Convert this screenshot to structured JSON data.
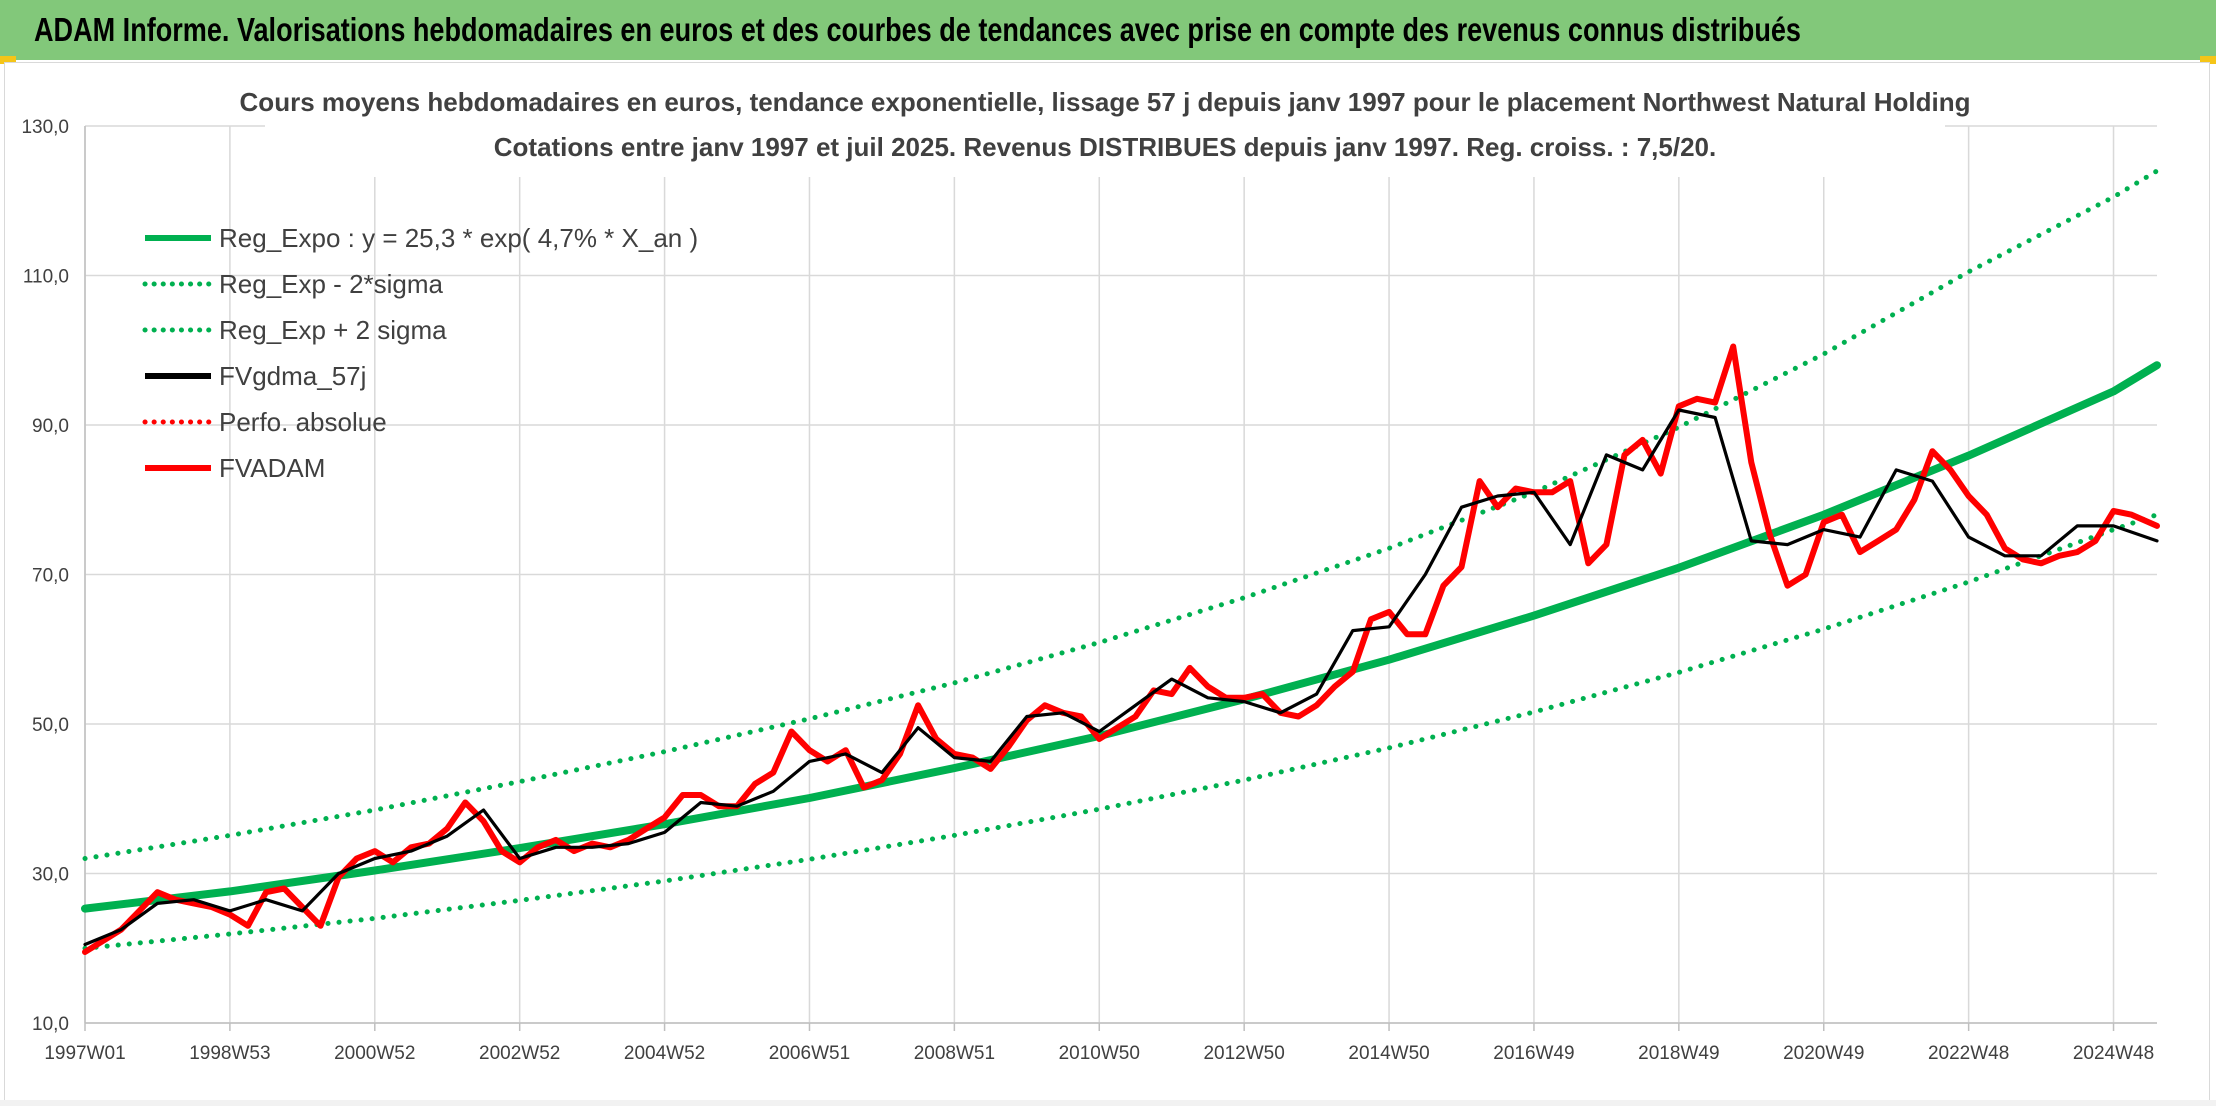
{
  "header": {
    "title": "ADAM Informe. Valorisations hebdomadaires en euros et des courbes de tendances avec prise en compte des revenus connus distribués",
    "band_color": "#82c87a"
  },
  "chart_data": {
    "type": "line",
    "title": "Cours moyens hebdomadaires en euros, tendance exponentielle, lissage 57 j depuis janv 1997 pour le placement Northwest Natural Holding",
    "subtitle": "Cotations entre janv 1997 et juil 2025. Revenus DISTRIBUES depuis janv 1997. Reg. croiss. : 7,5/20.",
    "xlabel": "",
    "ylabel": "",
    "ylim": [
      10,
      130
    ],
    "yticks": [
      "10,0",
      "30,0",
      "50,0",
      "70,0",
      "90,0",
      "110,0",
      "130,0"
    ],
    "xlim": [
      1997.0,
      2025.6
    ],
    "xticks": [
      {
        "label": "1997W01",
        "year": 1997.0
      },
      {
        "label": "1998W53",
        "year": 1999.0
      },
      {
        "label": "2000W52",
        "year": 2001.0
      },
      {
        "label": "2002W52",
        "year": 2003.0
      },
      {
        "label": "2004W52",
        "year": 2005.0
      },
      {
        "label": "2006W51",
        "year": 2007.0
      },
      {
        "label": "2008W51",
        "year": 2009.0
      },
      {
        "label": "2010W50",
        "year": 2011.0
      },
      {
        "label": "2012W50",
        "year": 2013.0
      },
      {
        "label": "2014W50",
        "year": 2015.0
      },
      {
        "label": "2016W49",
        "year": 2017.0
      },
      {
        "label": "2018W49",
        "year": 2019.0
      },
      {
        "label": "2020W49",
        "year": 2021.0
      },
      {
        "label": "2022W48",
        "year": 2023.0
      },
      {
        "label": "2024W48",
        "year": 2025.0
      }
    ],
    "grid": true,
    "legend_position": "top-left",
    "series": [
      {
        "name": "Reg_Expo : y = 25,3 * exp( 4,7% *  X_an )",
        "color": "#00b050",
        "style": "solid",
        "x": [
          1997.0,
          1999.0,
          2001.0,
          2003.0,
          2005.0,
          2007.0,
          2009.0,
          2011.0,
          2013.0,
          2015.0,
          2017.0,
          2019.0,
          2021.0,
          2023.0,
          2025.0,
          2025.6
        ],
        "y": [
          25.3,
          27.6,
          30.4,
          33.4,
          36.6,
          40.1,
          44.1,
          48.4,
          53.3,
          58.6,
          64.5,
          70.9,
          78.0,
          85.9,
          94.5,
          98.0
        ]
      },
      {
        "name": "Reg_Exp - 2*sigma",
        "color": "#00b050",
        "style": "dotted",
        "x": [
          1997.0,
          1999.0,
          2001.0,
          2003.0,
          2005.0,
          2007.0,
          2009.0,
          2011.0,
          2013.0,
          2015.0,
          2017.0,
          2019.0,
          2021.0,
          2023.0,
          2025.0,
          2025.6
        ],
        "y": [
          20.0,
          21.9,
          24.0,
          26.4,
          29.0,
          31.9,
          35.1,
          38.6,
          42.5,
          46.8,
          51.6,
          56.9,
          62.7,
          69.0,
          76.0,
          78.0
        ]
      },
      {
        "name": "Reg_Exp + 2 sigma",
        "color": "#00b050",
        "style": "dotted",
        "x": [
          1997.0,
          1999.0,
          2001.0,
          2003.0,
          2005.0,
          2007.0,
          2009.0,
          2011.0,
          2013.0,
          2015.0,
          2017.0,
          2019.0,
          2021.0,
          2023.0,
          2025.0,
          2025.6
        ],
        "y": [
          32.0,
          35.1,
          38.5,
          42.3,
          46.3,
          50.7,
          55.5,
          60.9,
          66.9,
          73.5,
          81.0,
          89.7,
          99.5,
          110.5,
          120.5,
          124.0
        ]
      },
      {
        "name": "FVgdma_57j",
        "color": "#000000",
        "style": "solid",
        "x": [
          1997.0,
          1997.5,
          1998.0,
          1998.5,
          1999.0,
          1999.5,
          2000.0,
          2000.5,
          2001.0,
          2001.5,
          2002.0,
          2002.5,
          2003.0,
          2003.5,
          2004.0,
          2004.5,
          2005.0,
          2005.5,
          2006.0,
          2006.5,
          2007.0,
          2007.5,
          2008.0,
          2008.5,
          2009.0,
          2009.5,
          2010.0,
          2010.5,
          2011.0,
          2011.5,
          2012.0,
          2012.5,
          2013.0,
          2013.5,
          2014.0,
          2014.5,
          2015.0,
          2015.5,
          2016.0,
          2016.5,
          2017.0,
          2017.5,
          2018.0,
          2018.5,
          2019.0,
          2019.5,
          2020.0,
          2020.5,
          2021.0,
          2021.5,
          2022.0,
          2022.5,
          2023.0,
          2023.5,
          2024.0,
          2024.5,
          2025.0,
          2025.6
        ],
        "y": [
          20.5,
          22.5,
          26.0,
          26.5,
          25.0,
          26.5,
          25.0,
          30.0,
          32.0,
          33.0,
          35.0,
          38.5,
          32.0,
          33.5,
          33.5,
          34.0,
          35.5,
          39.5,
          39.0,
          41.0,
          45.0,
          46.0,
          43.5,
          49.5,
          45.5,
          45.0,
          51.0,
          51.5,
          49.0,
          52.5,
          56.0,
          53.5,
          53.0,
          51.5,
          54.0,
          62.5,
          63.0,
          70.0,
          79.0,
          80.5,
          81.0,
          74.0,
          86.0,
          84.0,
          92.0,
          91.0,
          74.5,
          74.0,
          76.0,
          75.0,
          84.0,
          82.5,
          75.0,
          72.5,
          72.5,
          76.5,
          76.5,
          74.5
        ]
      },
      {
        "name": "Perfo. absolue",
        "color": "#ff0000",
        "style": "dotted",
        "x": [],
        "y": []
      },
      {
        "name": "FVADAM",
        "color": "#ff0000",
        "style": "solid",
        "x": [
          1997.0,
          1997.25,
          1997.5,
          1997.75,
          1998.0,
          1998.25,
          1998.5,
          1998.75,
          1999.0,
          1999.25,
          1999.5,
          1999.75,
          2000.0,
          2000.25,
          2000.5,
          2000.75,
          2001.0,
          2001.25,
          2001.5,
          2001.75,
          2002.0,
          2002.25,
          2002.5,
          2002.75,
          2003.0,
          2003.25,
          2003.5,
          2003.75,
          2004.0,
          2004.25,
          2004.5,
          2004.75,
          2005.0,
          2005.25,
          2005.5,
          2005.75,
          2006.0,
          2006.25,
          2006.5,
          2006.75,
          2007.0,
          2007.25,
          2007.5,
          2007.75,
          2008.0,
          2008.25,
          2008.5,
          2008.75,
          2009.0,
          2009.25,
          2009.5,
          2009.75,
          2010.0,
          2010.25,
          2010.5,
          2010.75,
          2011.0,
          2011.25,
          2011.5,
          2011.75,
          2012.0,
          2012.25,
          2012.5,
          2012.75,
          2013.0,
          2013.25,
          2013.5,
          2013.75,
          2014.0,
          2014.25,
          2014.5,
          2014.75,
          2015.0,
          2015.25,
          2015.5,
          2015.75,
          2016.0,
          2016.25,
          2016.5,
          2016.75,
          2017.0,
          2017.25,
          2017.5,
          2017.75,
          2018.0,
          2018.25,
          2018.5,
          2018.75,
          2019.0,
          2019.25,
          2019.5,
          2019.75,
          2020.0,
          2020.25,
          2020.5,
          2020.75,
          2021.0,
          2021.25,
          2021.5,
          2021.75,
          2022.0,
          2022.25,
          2022.5,
          2022.75,
          2023.0,
          2023.25,
          2023.5,
          2023.75,
          2024.0,
          2024.25,
          2024.5,
          2024.75,
          2025.0,
          2025.25,
          2025.6
        ],
        "y": [
          19.5,
          21.0,
          22.5,
          25.0,
          27.5,
          26.5,
          26.0,
          25.5,
          24.5,
          23.0,
          27.5,
          28.0,
          25.5,
          23.0,
          29.5,
          32.0,
          33.0,
          31.5,
          33.5,
          34.0,
          36.0,
          39.5,
          37.0,
          33.0,
          31.5,
          33.5,
          34.5,
          33.0,
          34.0,
          33.5,
          34.5,
          36.0,
          37.5,
          40.5,
          40.5,
          39.0,
          39.0,
          42.0,
          43.5,
          49.0,
          46.5,
          45.0,
          46.5,
          41.5,
          42.5,
          46.0,
          52.5,
          48.0,
          46.0,
          45.5,
          44.0,
          47.0,
          50.5,
          52.5,
          51.5,
          51.0,
          48.0,
          49.5,
          51.0,
          54.5,
          54.0,
          57.5,
          55.0,
          53.5,
          53.5,
          54.0,
          51.5,
          51.0,
          52.5,
          55.0,
          57.0,
          64.0,
          65.0,
          62.0,
          62.0,
          68.5,
          71.0,
          82.5,
          79.0,
          81.5,
          81.0,
          81.0,
          82.5,
          71.5,
          74.0,
          86.0,
          88.0,
          83.5,
          92.5,
          93.5,
          93.0,
          100.5,
          85.0,
          75.5,
          68.5,
          70.0,
          77.0,
          78.0,
          73.0,
          74.5,
          76.0,
          80.0,
          86.5,
          84.0,
          80.5,
          78.0,
          73.5,
          72.0,
          71.5,
          72.5,
          73.0,
          74.5,
          78.5,
          78.0,
          76.5
        ]
      }
    ]
  }
}
